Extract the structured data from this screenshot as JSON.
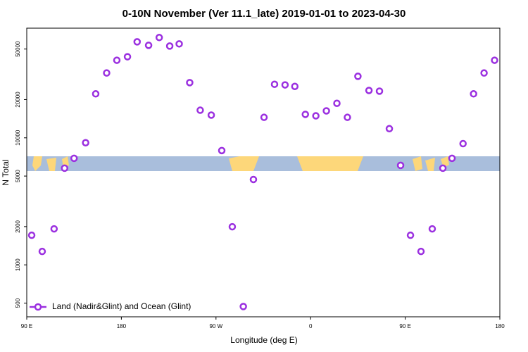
{
  "chart_data": {
    "type": "scatter",
    "title": "0-10N November (Ver 11.1_late)   2019-01-01 to 2023-04-30",
    "xlabel": "Longitude (deg E)",
    "ylabel": "N Total",
    "log_y": true,
    "legend": "bottom-left",
    "xlim": [
      90,
      540
    ],
    "ylim": [
      390,
      73000
    ],
    "xticks": [
      {
        "value": 90,
        "label": "90 E"
      },
      180,
      {
        "value": 270,
        "label": "90 W"
      },
      {
        "value": 360,
        "label": "0"
      },
      {
        "value": 450,
        "label": "90 E"
      },
      {
        "value": 540,
        "label": "180"
      }
    ],
    "yticks": [
      500,
      1000,
      2000,
      5000,
      10000,
      20000,
      50000
    ],
    "series": [
      {
        "name": "Land (Nadir&Glint) and Ocean (Glint)",
        "color": "#9b30e0",
        "x": [
          94.7,
          104.7,
          116,
          126,
          135,
          146,
          155.6,
          166,
          175.7,
          185.8,
          195,
          205.9,
          216,
          226,
          235,
          245,
          255,
          265.5,
          275.5,
          285.5,
          296,
          305.6,
          315.7,
          325.7,
          335.7,
          345,
          355,
          365,
          375,
          385,
          395,
          405,
          415.5,
          425.5,
          434.9,
          445.6,
          455,
          465,
          475.7,
          485.8,
          494.5,
          505,
          515,
          525,
          535
        ],
        "values": [
          1710,
          1275,
          1920,
          5770,
          6900,
          9150,
          22200,
          32400,
          40800,
          43500,
          57000,
          53500,
          61600,
          52800,
          54900,
          27200,
          16500,
          15100,
          7940,
          1995,
          470,
          4700,
          14500,
          26400,
          26100,
          25400,
          15300,
          14900,
          16300,
          18700,
          14500,
          30500,
          23600,
          23300,
          11800,
          6070,
          1710,
          1275,
          1920,
          5770,
          6900,
          9000,
          22200,
          32400,
          40800
        ]
      }
    ]
  }
}
